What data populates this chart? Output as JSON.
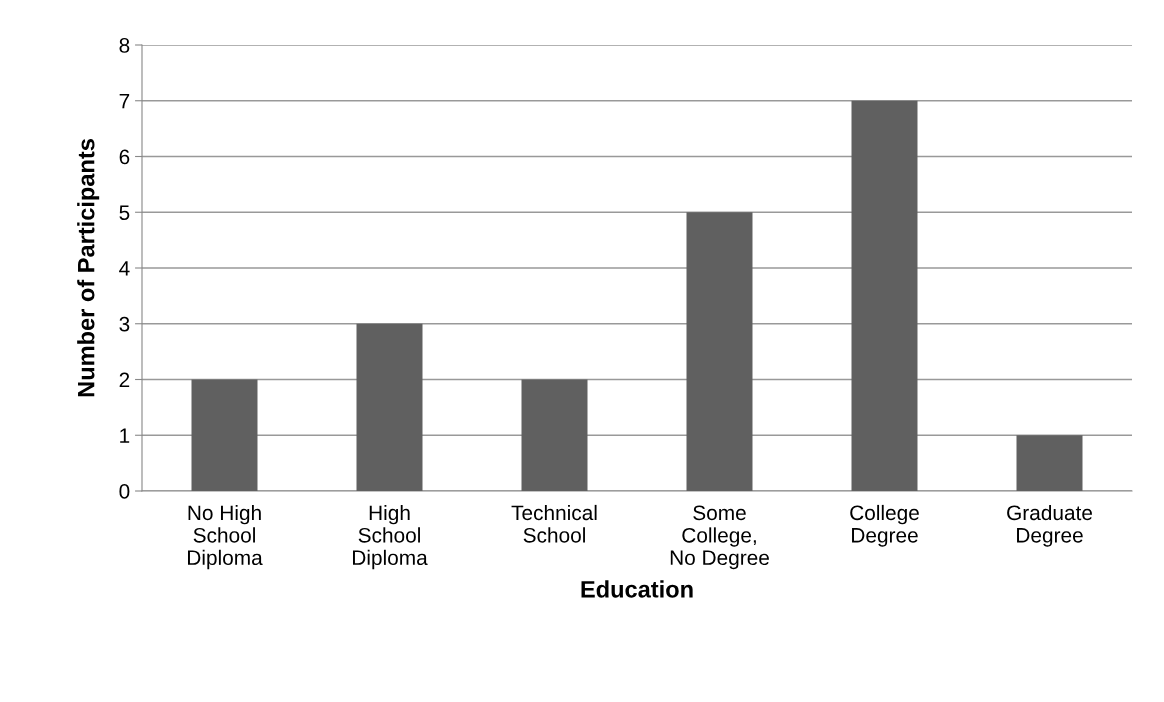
{
  "chart_data": {
    "type": "bar",
    "xlabel": "Education",
    "ylabel": "Number of Participants",
    "categories": [
      "No High\nSchool\nDiploma",
      "High\nSchool\nDiploma",
      "Technical\nSchool",
      "Some\nCollege,\nNo Degree",
      "College\nDegree",
      "Graduate\nDegree"
    ],
    "values": [
      2,
      3,
      2,
      5,
      7,
      1
    ],
    "color": "#606060",
    "ylim": [
      0,
      8
    ],
    "yticks": [
      0,
      1,
      2,
      3,
      4,
      5,
      6,
      7,
      8
    ],
    "grid": "y",
    "legend": false
  }
}
